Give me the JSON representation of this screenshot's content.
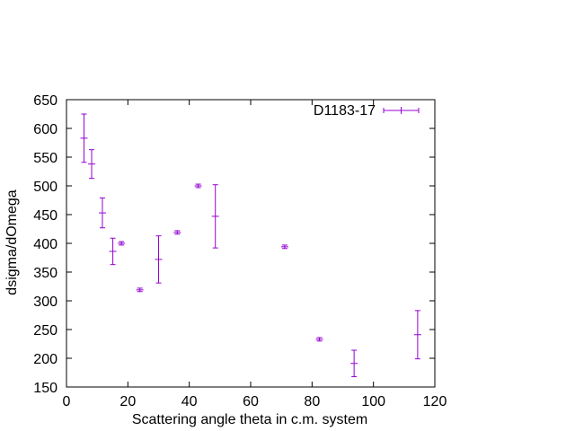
{
  "chart_data": {
    "type": "scatter",
    "title": "",
    "xlabel": "Scattering angle theta in c.m. system",
    "ylabel": "dsigma/dOmega",
    "xlim": [
      0,
      120
    ],
    "ylim": [
      150,
      650
    ],
    "xticks": [
      0,
      20,
      40,
      60,
      80,
      100,
      120
    ],
    "yticks": [
      150,
      200,
      250,
      300,
      350,
      400,
      450,
      500,
      550,
      600,
      650
    ],
    "grid": false,
    "legend_position": "top-right",
    "series": [
      {
        "name": "D1183-17",
        "color": "#9400d3",
        "marker": "plus-with-errorbars",
        "points": [
          {
            "x": 5.7,
            "y": 583,
            "err": 42
          },
          {
            "x": 8.2,
            "y": 538,
            "err": 25
          },
          {
            "x": 11.7,
            "y": 453,
            "err": 26
          },
          {
            "x": 15.1,
            "y": 386,
            "err": 23
          },
          {
            "x": 17.9,
            "y": 400,
            "err": 3
          },
          {
            "x": 23.9,
            "y": 319,
            "err": 3
          },
          {
            "x": 30.0,
            "y": 372,
            "err": 41
          },
          {
            "x": 36.1,
            "y": 419,
            "err": 3
          },
          {
            "x": 42.9,
            "y": 500,
            "err": 3
          },
          {
            "x": 48.5,
            "y": 447,
            "err": 55
          },
          {
            "x": 71.1,
            "y": 394,
            "err": 3
          },
          {
            "x": 82.4,
            "y": 233,
            "err": 3
          },
          {
            "x": 93.7,
            "y": 191,
            "err": 23
          },
          {
            "x": 114.4,
            "y": 241,
            "err": 42
          }
        ]
      }
    ]
  }
}
